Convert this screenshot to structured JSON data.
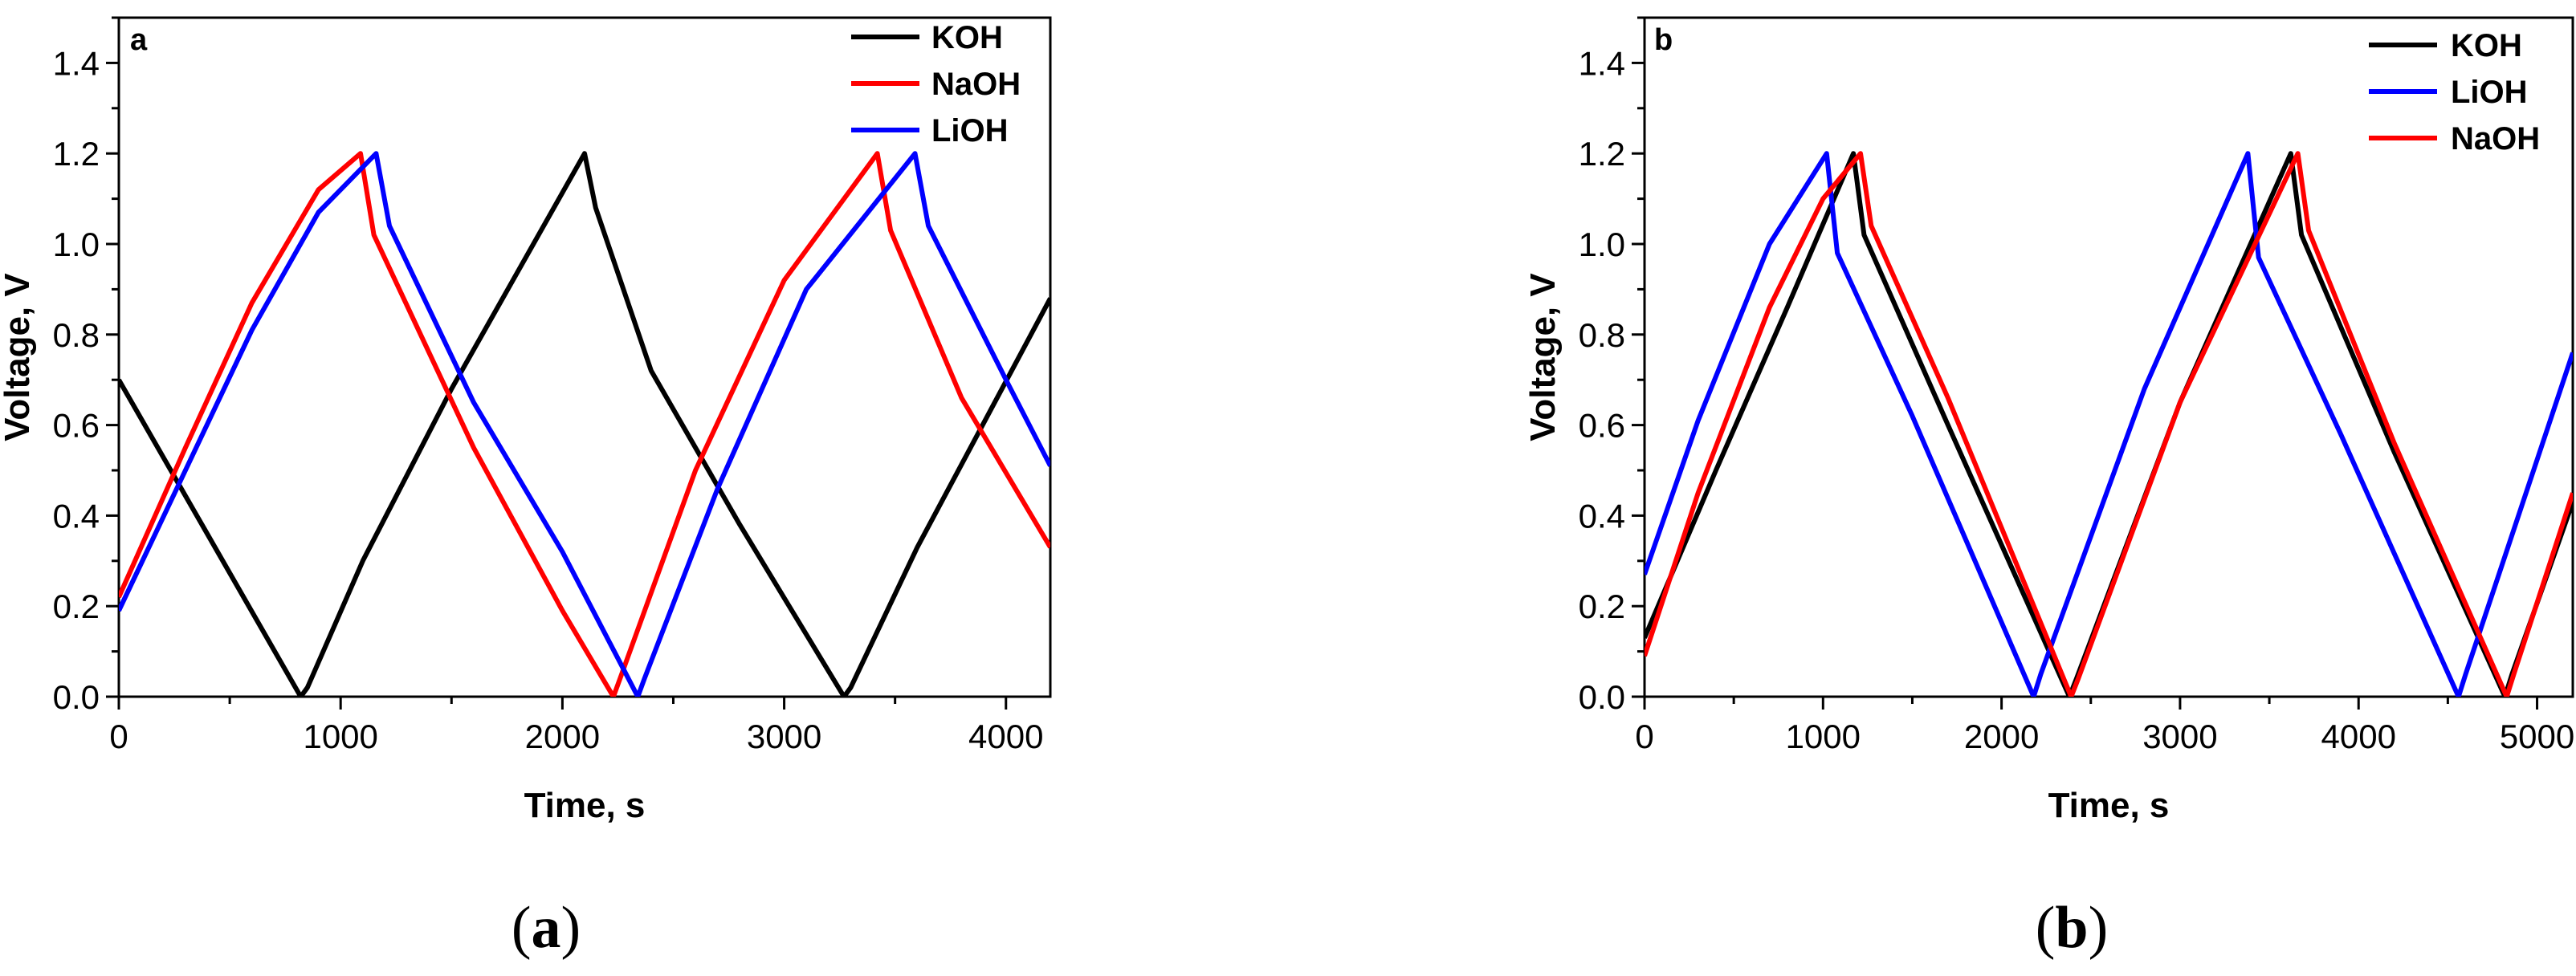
{
  "chart_data": [
    {
      "type": "line",
      "panel_label": "a",
      "caption_letter": "a",
      "xlabel": "Time, s",
      "ylabel": "Voltage, V",
      "xlim": [
        0,
        4200
      ],
      "ylim": [
        0,
        1.5
      ],
      "xticks": [
        0,
        1000,
        2000,
        3000,
        4000
      ],
      "yticks": [
        0.0,
        0.2,
        0.4,
        0.6,
        0.8,
        1.0,
        1.2,
        1.4
      ],
      "xtick_labels": [
        "0",
        "1000",
        "2000",
        "3000",
        "4000"
      ],
      "ytick_labels": [
        "0.0",
        "0.2",
        "0.4",
        "0.6",
        "0.8",
        "1.0",
        "1.2",
        "1.4"
      ],
      "legend_position": "top-right",
      "series": [
        {
          "name": "KOH",
          "color": "#000000",
          "x": [
            0,
            820,
            850,
            1100,
            1500,
            2100,
            2150,
            2400,
            2800,
            3270,
            3300,
            3600,
            4200
          ],
          "y": [
            0.7,
            0.0,
            0.02,
            0.3,
            0.68,
            1.2,
            1.08,
            0.72,
            0.38,
            0.0,
            0.02,
            0.33,
            0.88
          ]
        },
        {
          "name": "NaOH",
          "color": "#ff0000",
          "x": [
            0,
            300,
            600,
            900,
            1090,
            1150,
            1600,
            2000,
            2230,
            2260,
            2600,
            3000,
            3420,
            3480,
            3800,
            4200
          ],
          "y": [
            0.22,
            0.55,
            0.87,
            1.12,
            1.2,
            1.02,
            0.55,
            0.19,
            0.0,
            0.04,
            0.5,
            0.92,
            1.2,
            1.03,
            0.66,
            0.33
          ]
        },
        {
          "name": "LiOH",
          "color": "#0000ff",
          "x": [
            0,
            300,
            600,
            900,
            1160,
            1220,
            1600,
            2000,
            2340,
            2370,
            2700,
            3100,
            3590,
            3650,
            4000,
            4200
          ],
          "y": [
            0.19,
            0.5,
            0.81,
            1.07,
            1.2,
            1.04,
            0.65,
            0.32,
            0.0,
            0.04,
            0.46,
            0.9,
            1.2,
            1.04,
            0.7,
            0.51
          ]
        }
      ]
    },
    {
      "type": "line",
      "panel_label": "b",
      "caption_letter": "b",
      "xlabel": "Time, s",
      "ylabel": "Voltage, V",
      "xlim": [
        0,
        5200
      ],
      "ylim": [
        0,
        1.5
      ],
      "xticks": [
        0,
        1000,
        2000,
        3000,
        4000,
        5000
      ],
      "yticks": [
        0.0,
        0.2,
        0.4,
        0.6,
        0.8,
        1.0,
        1.2,
        1.4
      ],
      "xtick_labels": [
        "0",
        "1000",
        "2000",
        "3000",
        "4000",
        "5000"
      ],
      "ytick_labels": [
        "0.0",
        "0.2",
        "0.4",
        "0.6",
        "0.8",
        "1.0",
        "1.2",
        "1.4"
      ],
      "legend_position": "top-right",
      "series": [
        {
          "name": "KOH",
          "color": "#000000",
          "x": [
            0,
            400,
            800,
            1170,
            1230,
            1700,
            2380,
            2420,
            3000,
            3620,
            3680,
            4200,
            4820,
            4860,
            5200
          ],
          "y": [
            0.13,
            0.5,
            0.86,
            1.2,
            1.02,
            0.6,
            0.0,
            0.04,
            0.65,
            1.2,
            1.02,
            0.54,
            0.0,
            0.05,
            0.43
          ]
        },
        {
          "name": "LiOH",
          "color": "#0000ff",
          "x": [
            0,
            300,
            700,
            1020,
            1080,
            1500,
            2180,
            2220,
            2800,
            3380,
            3440,
            3900,
            4560,
            4600,
            5200
          ],
          "y": [
            0.27,
            0.61,
            1.0,
            1.2,
            0.98,
            0.62,
            0.0,
            0.05,
            0.68,
            1.2,
            0.97,
            0.58,
            0.0,
            0.05,
            0.76
          ]
        },
        {
          "name": "NaOH",
          "color": "#ff0000",
          "x": [
            0,
            300,
            700,
            1000,
            1210,
            1270,
            1700,
            2390,
            2430,
            3000,
            3660,
            3720,
            4200,
            4830,
            4870,
            5200
          ],
          "y": [
            0.09,
            0.45,
            0.86,
            1.1,
            1.2,
            1.04,
            0.66,
            0.0,
            0.04,
            0.65,
            1.2,
            1.03,
            0.56,
            0.0,
            0.05,
            0.45
          ]
        }
      ]
    }
  ]
}
